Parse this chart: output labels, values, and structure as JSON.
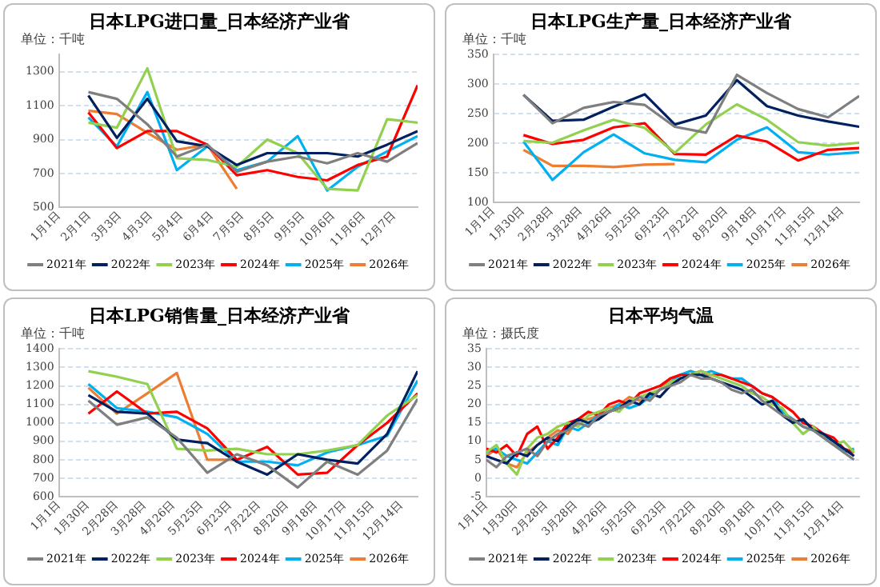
{
  "chart_data": [
    {
      "type": "line",
      "title": "日本LPG进口量_日本经济产业省",
      "ylabel": "单位：千吨",
      "grid": "y",
      "legend": "bottom",
      "marker": "none",
      "x": [
        "--01-31",
        "--02-29",
        "--03-31",
        "--04-30",
        "--05-31",
        "--06-30",
        "--07-31",
        "--08-31",
        "--09-30",
        "--10-31",
        "--11-30",
        "--12-31"
      ],
      "xlim": [
        "--01-01",
        "--12-31"
      ],
      "xticks": [
        {
          "value": "--01-01",
          "label": "1月1日"
        },
        {
          "value": "--02-01",
          "label": "2月1日"
        },
        {
          "value": "--03-03",
          "label": "3月3日"
        },
        {
          "value": "--04-03",
          "label": "4月3日"
        },
        {
          "value": "--05-04",
          "label": "5月4日"
        },
        {
          "value": "--06-04",
          "label": "6月4日"
        },
        {
          "value": "--07-05",
          "label": "7月5日"
        },
        {
          "value": "--08-05",
          "label": "8月5日"
        },
        {
          "value": "--09-05",
          "label": "9月5日"
        },
        {
          "value": "--10-06",
          "label": "10月6日"
        },
        {
          "value": "--11-06",
          "label": "11月6日"
        },
        {
          "value": "--12-07",
          "label": "12月7日"
        }
      ],
      "ylim": [
        500,
        1400
      ],
      "yticks": [
        500,
        700,
        900,
        1100,
        1300
      ],
      "series": [
        {
          "name": "2021年",
          "color": "#7f7f7f",
          "values": [
            1180,
            1140,
            990,
            800,
            870,
            710,
            770,
            800,
            760,
            820,
            770,
            880
          ]
        },
        {
          "name": "2022年",
          "color": "#002060",
          "values": [
            1160,
            910,
            1140,
            890,
            860,
            750,
            820,
            820,
            820,
            800,
            870,
            950
          ]
        },
        {
          "name": "2023年",
          "color": "#92d050",
          "values": [
            1000,
            970,
            1320,
            790,
            780,
            740,
            900,
            820,
            610,
            600,
            1020,
            1000
          ]
        },
        {
          "name": "2024年",
          "color": "#ff0000",
          "values": [
            1060,
            850,
            950,
            950,
            870,
            690,
            720,
            680,
            660,
            750,
            800,
            1220
          ]
        },
        {
          "name": "2025年",
          "color": "#00b0f0",
          "values": [
            1030,
            860,
            1180,
            720,
            860,
            720,
            770,
            920,
            600,
            740,
            830,
            920
          ]
        },
        {
          "name": "2026年",
          "color": "#ed7d31",
          "values": [
            1070,
            1050,
            940,
            840,
            870,
            610,
            null,
            null,
            null,
            null,
            null,
            null
          ]
        }
      ]
    },
    {
      "type": "line",
      "title": "日本LPG生产量_日本经济产业省",
      "ylabel": "单位：千吨",
      "grid": "y",
      "legend": "bottom",
      "marker": "none",
      "x": [
        "--01-31",
        "--02-29",
        "--03-31",
        "--04-30",
        "--05-31",
        "--06-30",
        "--07-31",
        "--08-31",
        "--09-30",
        "--10-31",
        "--11-30",
        "--12-31"
      ],
      "xlim": [
        "--01-01",
        "--12-31"
      ],
      "xticks": [
        {
          "value": "--01-01",
          "label": "1月1日"
        },
        {
          "value": "--01-30",
          "label": "1月30日"
        },
        {
          "value": "--02-28",
          "label": "2月28日"
        },
        {
          "value": "--03-28",
          "label": "3月28日"
        },
        {
          "value": "--04-26",
          "label": "4月26日"
        },
        {
          "value": "--05-25",
          "label": "5月25日"
        },
        {
          "value": "--06-23",
          "label": "6月23日"
        },
        {
          "value": "--07-22",
          "label": "7月22日"
        },
        {
          "value": "--08-20",
          "label": "8月20日"
        },
        {
          "value": "--09-18",
          "label": "9月18日"
        },
        {
          "value": "--10-17",
          "label": "10月17日"
        },
        {
          "value": "--11-15",
          "label": "11月15日"
        },
        {
          "value": "--12-14",
          "label": "12月14日"
        }
      ],
      "ylim": [
        100,
        350
      ],
      "yticks": [
        100,
        150,
        200,
        250,
        300,
        350
      ],
      "series": [
        {
          "name": "2021年",
          "color": "#7f7f7f",
          "values": [
            282,
            234,
            260,
            270,
            265,
            228,
            218,
            316,
            285,
            258,
            244,
            280
          ]
        },
        {
          "name": "2022年",
          "color": "#002060",
          "values": [
            282,
            238,
            240,
            262,
            283,
            232,
            247,
            307,
            263,
            247,
            237,
            228
          ]
        },
        {
          "name": "2023年",
          "color": "#92d050",
          "values": [
            204,
            201,
            222,
            240,
            226,
            184,
            232,
            266,
            240,
            202,
            196,
            201
          ]
        },
        {
          "name": "2024年",
          "color": "#ff0000",
          "values": [
            214,
            199,
            206,
            227,
            234,
            182,
            181,
            213,
            203,
            171,
            189,
            192
          ]
        },
        {
          "name": "2025年",
          "color": "#00b0f0",
          "values": [
            203,
            138,
            185,
            215,
            183,
            172,
            168,
            206,
            227,
            185,
            181,
            185
          ]
        },
        {
          "name": "2026年",
          "color": "#ed7d31",
          "values": [
            189,
            162,
            162,
            160,
            164,
            165,
            null,
            null,
            null,
            null,
            null,
            null
          ]
        }
      ]
    },
    {
      "type": "line",
      "title": "日本LPG销售量_日本经济产业省",
      "ylabel": "单位：千吨",
      "grid": "y",
      "legend": "bottom",
      "marker": "none",
      "x": [
        "--01-31",
        "--02-29",
        "--03-31",
        "--04-30",
        "--05-31",
        "--06-30",
        "--07-31",
        "--08-31",
        "--09-30",
        "--10-31",
        "--11-30",
        "--12-31"
      ],
      "xlim": [
        "--01-01",
        "--12-31"
      ],
      "xticks": [
        {
          "value": "--01-01",
          "label": "1月1日"
        },
        {
          "value": "--01-30",
          "label": "1月30日"
        },
        {
          "value": "--02-28",
          "label": "2月28日"
        },
        {
          "value": "--03-28",
          "label": "3月28日"
        },
        {
          "value": "--04-26",
          "label": "4月26日"
        },
        {
          "value": "--05-25",
          "label": "5月25日"
        },
        {
          "value": "--06-23",
          "label": "6月23日"
        },
        {
          "value": "--07-22",
          "label": "7月22日"
        },
        {
          "value": "--08-20",
          "label": "8月20日"
        },
        {
          "value": "--09-18",
          "label": "9月18日"
        },
        {
          "value": "--10-17",
          "label": "10月17日"
        },
        {
          "value": "--11-15",
          "label": "11月15日"
        },
        {
          "value": "--12-14",
          "label": "12月14日"
        }
      ],
      "ylim": [
        600,
        1400
      ],
      "yticks": [
        600,
        700,
        800,
        900,
        1000,
        1100,
        1200,
        1300,
        1400
      ],
      "series": [
        {
          "name": "2021年",
          "color": "#7f7f7f",
          "values": [
            1120,
            990,
            1030,
            920,
            730,
            830,
            770,
            650,
            790,
            720,
            850,
            1130
          ]
        },
        {
          "name": "2022年",
          "color": "#002060",
          "values": [
            1150,
            1060,
            1050,
            910,
            890,
            790,
            720,
            830,
            800,
            780,
            940,
            1280
          ]
        },
        {
          "name": "2023年",
          "color": "#92d050",
          "values": [
            1280,
            1250,
            1210,
            860,
            850,
            860,
            830,
            830,
            850,
            880,
            1040,
            1150
          ]
        },
        {
          "name": "2024年",
          "color": "#ff0000",
          "values": [
            1050,
            1170,
            1050,
            1060,
            970,
            800,
            870,
            720,
            730,
            880,
            1000,
            1160
          ]
        },
        {
          "name": "2025年",
          "color": "#00b0f0",
          "values": [
            1210,
            1080,
            1060,
            1030,
            940,
            790,
            790,
            770,
            840,
            880,
            930,
            1230
          ]
        },
        {
          "name": "2026年",
          "color": "#ed7d31",
          "values": [
            1190,
            1050,
            1160,
            1270,
            800,
            800,
            null,
            null,
            null,
            null,
            null,
            null
          ]
        }
      ]
    },
    {
      "type": "line",
      "title": "日本平均气温",
      "ylabel": "单位：摄氏度",
      "grid": "y",
      "legend": "bottom",
      "marker": "none",
      "x": [
        "--01-01",
        "--01-11",
        "--01-21",
        "--01-31",
        "--02-10",
        "--02-20",
        "--03-01",
        "--03-11",
        "--03-21",
        "--03-31",
        "--04-10",
        "--04-20",
        "--04-30",
        "--05-10",
        "--05-20",
        "--05-30",
        "--06-09",
        "--06-19",
        "--06-29",
        "--07-09",
        "--07-19",
        "--07-29",
        "--08-08",
        "--08-18",
        "--08-28",
        "--09-07",
        "--09-17",
        "--09-27",
        "--10-07",
        "--10-17",
        "--10-27",
        "--11-06",
        "--11-16",
        "--11-26",
        "--12-06",
        "--12-16",
        "--12-26"
      ],
      "xlim": [
        "--01-01",
        "--12-31"
      ],
      "xticks": [
        {
          "value": "--01-01",
          "label": "1月1日"
        },
        {
          "value": "--01-30",
          "label": "1月30日"
        },
        {
          "value": "--02-28",
          "label": "2月28日"
        },
        {
          "value": "--03-28",
          "label": "3月28日"
        },
        {
          "value": "--04-26",
          "label": "4月26日"
        },
        {
          "value": "--05-25",
          "label": "5月25日"
        },
        {
          "value": "--06-23",
          "label": "6月23日"
        },
        {
          "value": "--07-22",
          "label": "7月22日"
        },
        {
          "value": "--08-20",
          "label": "8月20日"
        },
        {
          "value": "--09-18",
          "label": "9月18日"
        },
        {
          "value": "--10-17",
          "label": "10月17日"
        },
        {
          "value": "--11-15",
          "label": "11月15日"
        },
        {
          "value": "--12-14",
          "label": "12月14日"
        }
      ],
      "ylim": [
        -5,
        35
      ],
      "yticks": [
        -5,
        0,
        5,
        10,
        15,
        20,
        25,
        30,
        35
      ],
      "series": [
        {
          "name": "2021年",
          "color": "#7f7f7f",
          "values": [
            5,
            3,
            6,
            7,
            8,
            6,
            10,
            12,
            13,
            15,
            14,
            17,
            18,
            19,
            20,
            22,
            21,
            24,
            25,
            26,
            28,
            27,
            27,
            26,
            24,
            23,
            24,
            21,
            19,
            17,
            16,
            14,
            13,
            11,
            9,
            7,
            5
          ]
        },
        {
          "name": "2022年",
          "color": "#002060",
          "values": [
            6,
            5,
            4,
            7,
            6,
            9,
            11,
            10,
            14,
            16,
            15,
            16,
            18,
            19,
            21,
            20,
            23,
            22,
            25,
            27,
            28,
            28,
            27,
            26,
            25,
            24,
            22,
            20,
            21,
            17,
            15,
            16,
            13,
            12,
            10,
            8,
            6
          ]
        },
        {
          "name": "2023年",
          "color": "#92d050",
          "values": [
            7,
            9,
            4,
            1,
            8,
            11,
            12,
            14,
            15,
            14,
            17,
            18,
            19,
            18,
            21,
            22,
            23,
            24,
            26,
            27,
            28,
            29,
            28,
            27,
            26,
            25,
            23,
            22,
            20,
            19,
            15,
            12,
            14,
            11,
            9,
            10,
            7
          ]
        },
        {
          "name": "2024年",
          "color": "#ff0000",
          "values": [
            8,
            7,
            9,
            6,
            12,
            14,
            8,
            11,
            15,
            16,
            18,
            17,
            20,
            21,
            20,
            23,
            24,
            25,
            27,
            28,
            28,
            29,
            28,
            28,
            27,
            26,
            25,
            23,
            22,
            20,
            18,
            15,
            14,
            12,
            11,
            8,
            7
          ]
        },
        {
          "name": "2025年",
          "color": "#00b0f0",
          "values": [
            7,
            8,
            6,
            5,
            4,
            7,
            10,
            9,
            14,
            13,
            15,
            17,
            18,
            20,
            19,
            20,
            22,
            24,
            26,
            28,
            29,
            28,
            29,
            28,
            27,
            27,
            25,
            23,
            22,
            18,
            16,
            14,
            13,
            11,
            10,
            7,
            8
          ]
        },
        {
          "name": "2026年",
          "color": "#ed7d31",
          "values": [
            6,
            8,
            4,
            3,
            7,
            9,
            11,
            13,
            12,
            16,
            16,
            17,
            19,
            20,
            22,
            21,
            22,
            24,
            27,
            28,
            29,
            28,
            28,
            null,
            null,
            null,
            null,
            null,
            null,
            null,
            null,
            null,
            null,
            null,
            null,
            null,
            null
          ]
        }
      ]
    }
  ]
}
